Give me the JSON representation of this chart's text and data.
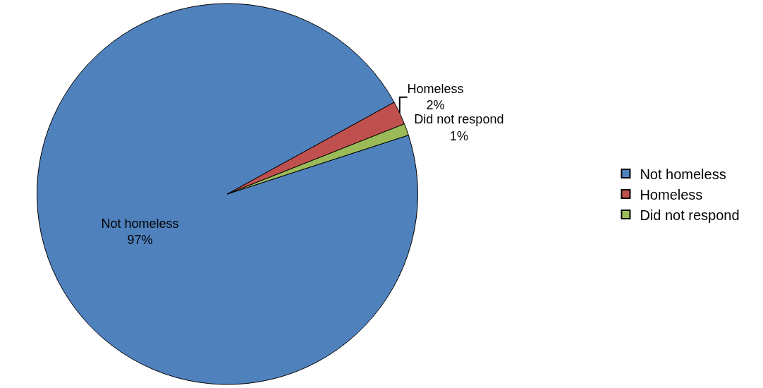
{
  "chart_data": {
    "type": "pie",
    "categories": [
      "Not homeless",
      "Homeless",
      "Did not respond"
    ],
    "values": [
      97,
      2,
      1
    ],
    "colors": [
      "#4f81bd",
      "#c0504d",
      "#9bbb59"
    ],
    "value_labels": [
      "97%",
      "2%",
      "1%"
    ],
    "legend": "right"
  }
}
